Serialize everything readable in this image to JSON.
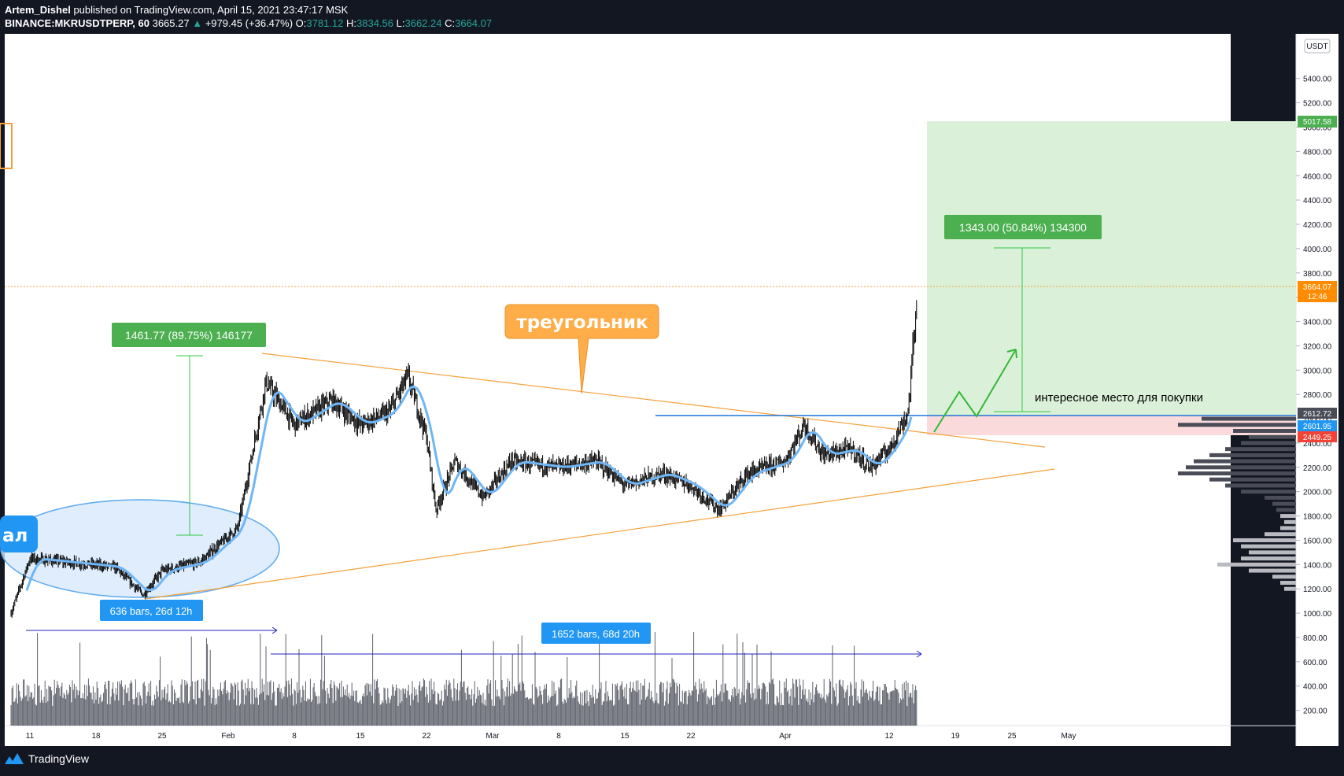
{
  "header": {
    "author": "Artem_Dishel",
    "published_text": "published on TradingView.com, April 15, 2021 23:47:17 MSK",
    "symbol": "BINANCE:MKRUSDTPERP, 60",
    "last_price": "3665.27",
    "change": "+979.45 (+36.47%)",
    "open_label": "O:",
    "open": "3781.12",
    "high_label": "H:",
    "high": "3834.56",
    "low_label": "L:",
    "low": "3662.24",
    "close_label": "C:",
    "close": "3664.07"
  },
  "footer": {
    "brand": "TradingView"
  },
  "colors": {
    "background": "#ffffff",
    "frame": "#131722",
    "candle": "#000000",
    "ma": "#6eb6f5",
    "triangle": "#f7a03a",
    "level": "#1e73d8",
    "target_zone": "#dbf0d9",
    "stop_zone": "#fadadb",
    "label_green": "#4caf50",
    "label_blue": "#2196f3",
    "callout": "#ffad48"
  },
  "chart_data": {
    "type": "candlestick",
    "ylim": [
      0,
      5700
    ],
    "y_ticks": [
      200,
      400,
      600,
      800,
      1000,
      1200,
      1400,
      1600,
      1800,
      2000,
      2200,
      2400,
      2600,
      2800,
      3000,
      3200,
      3400,
      3600,
      3800,
      4000,
      4200,
      4400,
      4600,
      4800,
      5000,
      5200,
      5400
    ],
    "y_tick_labels": [
      "200.00",
      "400.00",
      "600.00",
      "800.00",
      "1000.00",
      "1200.00",
      "1400.00",
      "1600.00",
      "1800.00",
      "2000.00",
      "2200.00",
      "2400.00",
      "2600.00",
      "2800.00",
      "3000.00",
      "3200.00",
      "3400.00",
      "3600.00",
      "3800.00",
      "4000.00",
      "4200.00",
      "4400.00",
      "4600.00",
      "4800.00",
      "5000.00",
      "5200.00",
      "5400.00"
    ],
    "x_ticks": [
      "11",
      "18",
      "25",
      "Feb",
      "8",
      "15",
      "22",
      "Mar",
      "8",
      "15",
      "22",
      "Apr",
      "12",
      "19",
      "25",
      "May"
    ],
    "currency": "USDT",
    "price_path": [
      [
        "2021-01-09",
        1000
      ],
      [
        "2021-01-11",
        1450
      ],
      [
        "2021-01-15",
        1420
      ],
      [
        "2021-01-20",
        1380
      ],
      [
        "2021-01-23",
        1150
      ],
      [
        "2021-01-25",
        1350
      ],
      [
        "2021-01-29",
        1420
      ],
      [
        "2021-02-02",
        1700
      ],
      [
        "2021-02-05",
        2900
      ],
      [
        "2021-02-08",
        2550
      ],
      [
        "2021-02-12",
        2750
      ],
      [
        "2021-02-15",
        2550
      ],
      [
        "2021-02-18",
        2650
      ],
      [
        "2021-02-20",
        2950
      ],
      [
        "2021-02-22",
        2450
      ],
      [
        "2021-02-23",
        1850
      ],
      [
        "2021-02-25",
        2250
      ],
      [
        "2021-02-28",
        1950
      ],
      [
        "2021-03-03",
        2250
      ],
      [
        "2021-03-08",
        2200
      ],
      [
        "2021-03-12",
        2250
      ],
      [
        "2021-03-15",
        2050
      ],
      [
        "2021-03-19",
        2150
      ],
      [
        "2021-03-22",
        2050
      ],
      [
        "2021-03-25",
        1850
      ],
      [
        "2021-03-28",
        2150
      ],
      [
        "2021-04-01",
        2250
      ],
      [
        "2021-04-03",
        2550
      ],
      [
        "2021-04-05",
        2300
      ],
      [
        "2021-04-08",
        2350
      ],
      [
        "2021-04-10",
        2200
      ],
      [
        "2021-04-12",
        2350
      ],
      [
        "2021-04-14",
        2650
      ],
      [
        "2021-04-15",
        3665
      ]
    ],
    "current_price": "3664.07",
    "countdown": "12:46",
    "price_labels": {
      "target": "5017.58",
      "level_high": "2612.72",
      "level_mid": "2601.95",
      "level_low": "2449.25"
    },
    "measures": [
      {
        "label": "1461.77 (89.75%) 146177"
      },
      {
        "label": "1343.00 (50.84%) 134300"
      }
    ],
    "date_ranges": [
      {
        "label": "636 bars, 26d 12h"
      },
      {
        "label": "1652 bars, 68d 20h"
      }
    ],
    "annotations": {
      "callout": "треугольник",
      "buy_zone_note": "интересное место для покупки",
      "left_label": "ал"
    },
    "volume_profile": [
      [
        2600,
        120
      ],
      [
        2550,
        150
      ],
      [
        2500,
        80
      ],
      [
        2450,
        60
      ],
      [
        2400,
        70
      ],
      [
        2350,
        90
      ],
      [
        2300,
        110
      ],
      [
        2250,
        130
      ],
      [
        2200,
        140
      ],
      [
        2150,
        150
      ],
      [
        2100,
        110
      ],
      [
        2050,
        90
      ],
      [
        2000,
        70
      ],
      [
        1950,
        40
      ],
      [
        1900,
        30
      ],
      [
        1850,
        25
      ],
      [
        1800,
        20
      ],
      [
        1750,
        15
      ],
      [
        1700,
        20
      ],
      [
        1650,
        40
      ],
      [
        1600,
        80
      ],
      [
        1550,
        70
      ],
      [
        1500,
        60
      ],
      [
        1450,
        70
      ],
      [
        1400,
        100
      ],
      [
        1350,
        60
      ],
      [
        1300,
        30
      ],
      [
        1250,
        20
      ],
      [
        1200,
        15
      ]
    ]
  }
}
